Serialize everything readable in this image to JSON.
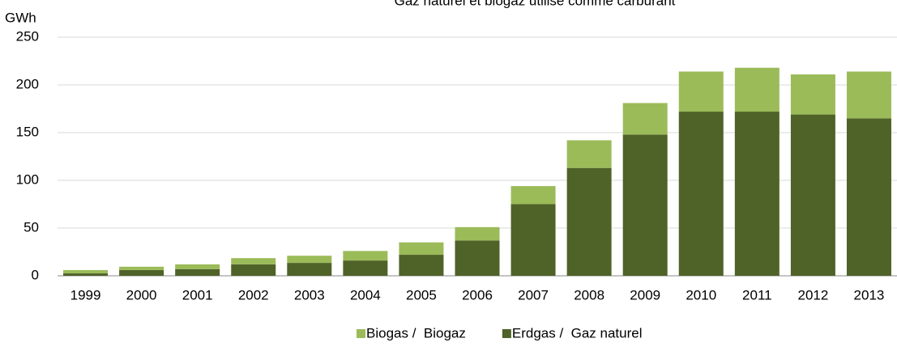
{
  "chart_data": {
    "type": "stacked_bar",
    "title": "Gaz naturel et biogaz utilisé comme carburant",
    "y_axis_label": "GWh",
    "categories": [
      "1999",
      "2000",
      "2001",
      "2002",
      "2003",
      "2004",
      "2005",
      "2006",
      "2007",
      "2008",
      "2009",
      "2010",
      "2011",
      "2012",
      "2013"
    ],
    "series": [
      {
        "name": "Biogas /  Biogaz",
        "color": "#9bbb59",
        "values": [
          3.5,
          3.5,
          5,
          6.5,
          7.5,
          10,
          13,
          14,
          19,
          29,
          33,
          42,
          46,
          42,
          49
        ]
      },
      {
        "name": "Erdgas /  Gaz naturel",
        "color": "#4f6228",
        "values": [
          2.5,
          6,
          7,
          12,
          13.5,
          16,
          22,
          37,
          75,
          113,
          148,
          172,
          172,
          169,
          165
        ]
      }
    ],
    "ylim": [
      0,
      250
    ],
    "yticks": [
      0,
      50,
      100,
      150,
      200,
      250
    ],
    "grid": true,
    "legend": "bottom"
  }
}
